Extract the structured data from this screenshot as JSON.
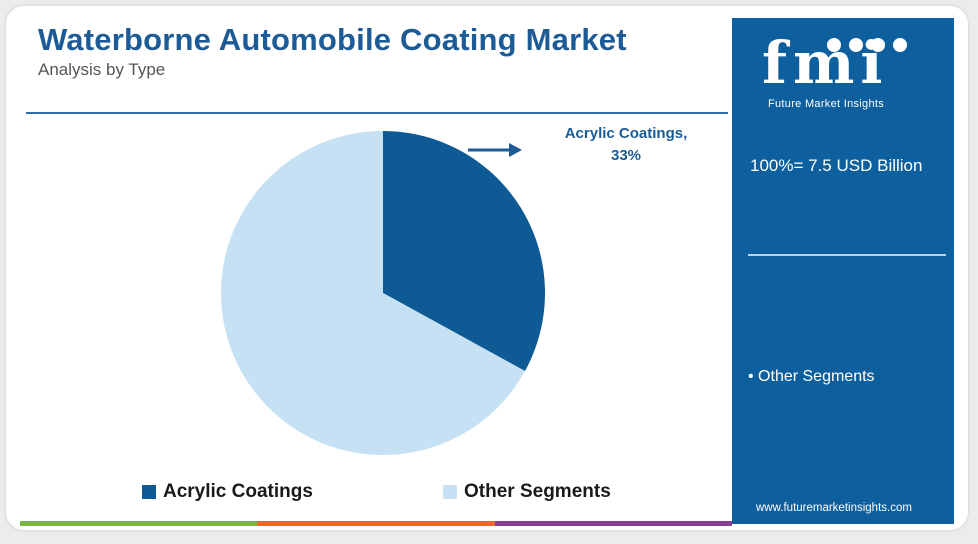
{
  "header": {
    "title": "Waterborne Automobile Coating Market",
    "subtitle": "Analysis by Type"
  },
  "chart_data": {
    "type": "pie",
    "slices": [
      {
        "name": "Acrylic Coatings",
        "value": 33,
        "color": "#0d5a94"
      },
      {
        "name": "Other Segments",
        "value": 67,
        "color": "#c6e1f3"
      }
    ],
    "callout": {
      "label": "Acrylic Coatings,",
      "value_label": "33%"
    },
    "legend_position": "bottom"
  },
  "legend": {
    "items": [
      {
        "label": "Acrylic Coatings",
        "color": "#0d5a94"
      },
      {
        "label": "Other Segments",
        "color": "#c6e1f3"
      }
    ]
  },
  "sidebar": {
    "brand": "fmi",
    "tagline": "Future Market Insights",
    "total_label": "100%= 7.5 USD Billion",
    "segment_item": "• Other Segments",
    "url": "www.futuremarketinsights.com",
    "background": "#0d5f9e"
  },
  "accent_bar_colors": [
    "#7ab648",
    "#e8692e",
    "#8a3f95"
  ]
}
